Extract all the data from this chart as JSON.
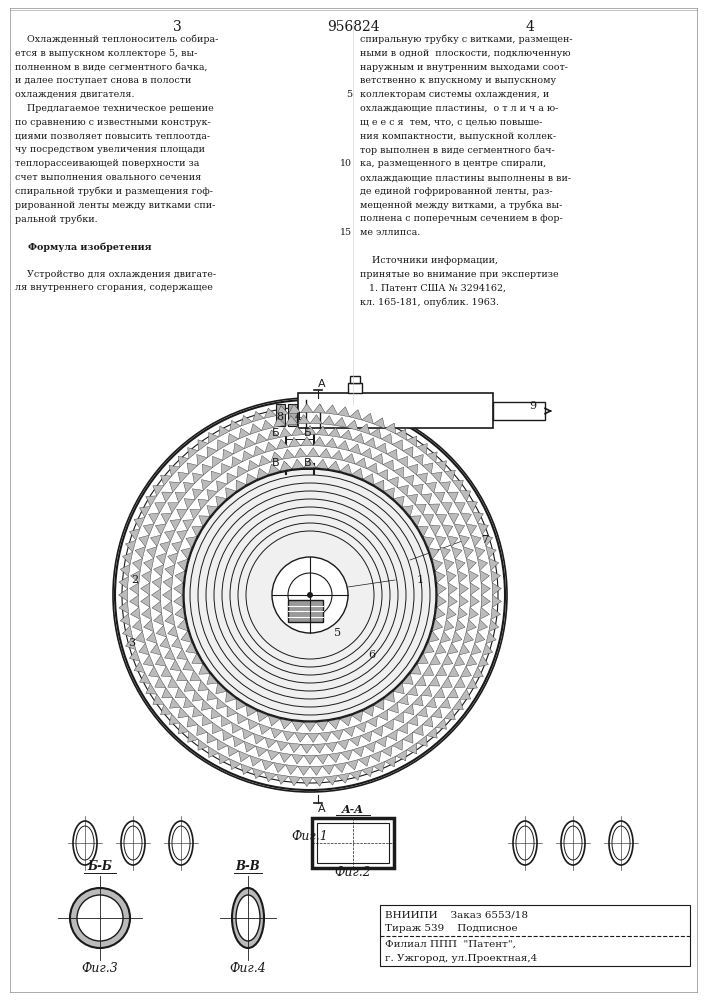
{
  "page_number_left": "3",
  "page_number_center": "956824",
  "page_number_right": "4",
  "text_left": [
    "    Охлажденный теплоноситель собира-",
    "ется в выпускном коллекторе 5, вы-",
    "полненном в виде сегментного бачка,",
    "и далее поступает снова в полости",
    "охлаждения двигателя.",
    "    Предлагаемое техническое решение",
    "по сравнению с известными конструк-",
    "циями позволяет повысить теплоотда-",
    "чу посредством увеличения площади",
    "теплорассеивающей поверхности за",
    "счет выполнения овального сечения",
    "спиральной трубки и размещения гоф-",
    "рированной ленты между витками спи-",
    "ральной трубки.",
    "",
    "    Формула изобретения",
    "",
    "    Устройство для охлаждения двигате-",
    "ля внутреннего сгорания, содержащее"
  ],
  "text_right": [
    "спиральную трубку с витками, размещен-",
    "ными в одной  плоскости, подключенную",
    "наружным и внутренним выходами соот-",
    "ветственно к впускному и выпускному",
    "коллекторам системы охлаждения, и",
    "охлаждающие пластины,  о т л и ч а ю-",
    "щ е е с я  тем, что, с целью повыше-",
    "ния компактности, выпускной коллек-",
    "тор выполнен в виде сегментного бач-",
    "ка, размещенного в центре спирали,",
    "охлаждающие пластины выполнены в ви-",
    "де единой гофрированной ленты, раз-",
    "мещенной между витками, а трубка вы-",
    "полнена с поперечным сечением в фор-",
    "ме эллипса.",
    "",
    "    Источники информации,",
    "принятые во внимание при экспертизе",
    "   1. Патент США № 3294162,",
    "кл. 165-181, опублик. 1963."
  ],
  "line_number_5": "5",
  "line_number_10": "10",
  "line_number_15": "15",
  "fig1_label": "Фиг.1",
  "fig2_label": "Фиг.2",
  "fig3_label": "Фиг.3",
  "fig4_label": "Фиг.4",
  "section_aa": "A-A",
  "section_bb": "Б-Б",
  "section_vv": "В-В",
  "bottom_text_line1": "ВНИИПИ    Заказ 6553/18",
  "bottom_text_line2": "Тираж 539    Подписное",
  "bottom_text_line3": "Филиал ППП  \"Патент\",",
  "bottom_text_line4": "г. Ужгород, ул.Проектная,4",
  "bg_color": "#ffffff",
  "text_color": "#1a1a1a",
  "line_color": "#1a1a1a"
}
